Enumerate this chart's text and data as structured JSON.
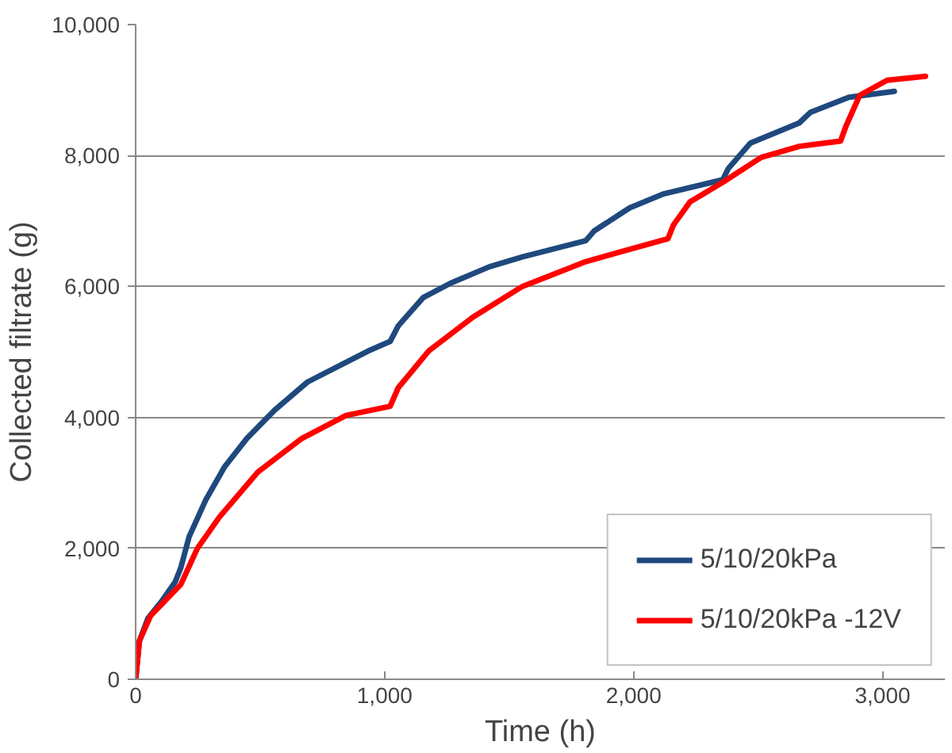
{
  "chart_data": {
    "type": "line",
    "xlabel": "Time (h)",
    "ylabel": "Collected filtrate (g)",
    "xlim": [
      0,
      3250
    ],
    "ylim": [
      0,
      10000
    ],
    "xticks": [
      {
        "value": 0,
        "label": "0"
      },
      {
        "value": 1000,
        "label": "1,000"
      },
      {
        "value": 2000,
        "label": "2,000"
      },
      {
        "value": 3000,
        "label": "3,000"
      }
    ],
    "yticks": [
      {
        "value": 0,
        "label": "0"
      },
      {
        "value": 2000,
        "label": "2,000"
      },
      {
        "value": 4000,
        "label": "4,000"
      },
      {
        "value": 6000,
        "label": "6,000"
      },
      {
        "value": 8000,
        "label": "8,000"
      },
      {
        "value": 10000,
        "label": "10,000"
      }
    ],
    "grid": "y",
    "legend": "bottom right",
    "marker": "none",
    "line_style": "solid",
    "series": [
      {
        "name": "5/10/20kPa",
        "color": "#1f497d",
        "x": [
          0,
          15,
          49,
          104,
          159,
          181,
          215,
          281,
          358,
          447,
          558,
          690,
          823,
          934,
          1022,
          1055,
          1155,
          1265,
          1420,
          1553,
          1808,
          1842,
          1984,
          2117,
          2358,
          2380,
          2469,
          2666,
          2710,
          2864,
          3047
        ],
        "values": [
          0,
          585,
          930,
          1190,
          1490,
          1700,
          2180,
          2735,
          3250,
          3680,
          4110,
          4540,
          4800,
          5015,
          5160,
          5400,
          5830,
          6050,
          6300,
          6450,
          6700,
          6850,
          7200,
          7410,
          7630,
          7800,
          8190,
          8500,
          8660,
          8890,
          8980
        ]
      },
      {
        "name": "5/10/20kPa -12V",
        "color": "#ff0000",
        "x": [
          0,
          15,
          60,
          159,
          181,
          248,
          336,
          491,
          668,
          845,
          1022,
          1055,
          1177,
          1354,
          1553,
          1808,
          2138,
          2160,
          2226,
          2358,
          2402,
          2512,
          2666,
          2831,
          2853,
          2908,
          3018,
          3172
        ],
        "values": [
          0,
          585,
          970,
          1360,
          1445,
          2000,
          2475,
          3165,
          3680,
          4030,
          4170,
          4455,
          5015,
          5530,
          6000,
          6380,
          6730,
          6940,
          7290,
          7590,
          7700,
          7970,
          8140,
          8220,
          8450,
          8920,
          9150,
          9210
        ]
      }
    ]
  }
}
